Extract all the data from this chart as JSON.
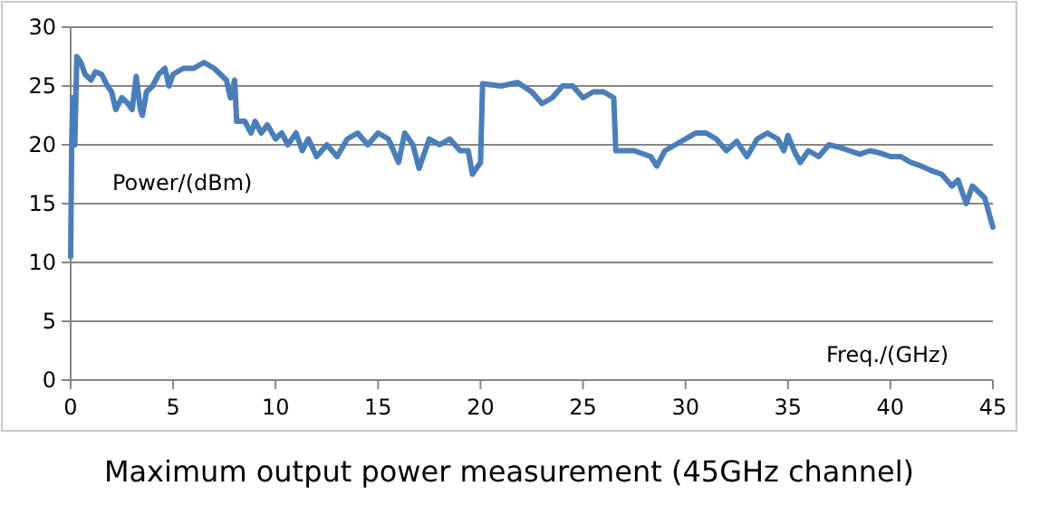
{
  "chart_data": {
    "type": "line",
    "title": "Maximum output power measurement (45GHz channel)",
    "xlabel": "Freq./(GHz)",
    "ylabel": "Power/(dBm)",
    "xlim": [
      0,
      45
    ],
    "xticks": [
      0,
      5,
      10,
      15,
      20,
      25,
      30,
      35,
      40,
      45
    ],
    "ylim": [
      0,
      30
    ],
    "yticks": [
      0,
      5,
      10,
      15,
      20,
      25,
      30
    ],
    "grid": "y",
    "line_style": "solid",
    "marker": "none",
    "series": [
      {
        "color": "#4a7ebb",
        "x": [
          0,
          0.05,
          0.1,
          0.2,
          0.3,
          0.5,
          0.7,
          1,
          1.2,
          1.5,
          1.8,
          2,
          2.2,
          2.5,
          2.8,
          3,
          3.2,
          3.4,
          3.5,
          3.7,
          4,
          4.3,
          4.6,
          4.8,
          5,
          5.5,
          6,
          6.5,
          7,
          7.3,
          7.6,
          7.8,
          8,
          8.1,
          8.5,
          8.8,
          9,
          9.3,
          9.6,
          10,
          10.3,
          10.6,
          11,
          11.3,
          11.6,
          12,
          12.5,
          13,
          13.5,
          14,
          14.5,
          15,
          15.5,
          16,
          16.3,
          16.7,
          17,
          17.5,
          18,
          18.5,
          19,
          19.4,
          19.6,
          20,
          20.1,
          21,
          21.8,
          22.5,
          23,
          23.5,
          24,
          24.5,
          25,
          25.5,
          26,
          26.5,
          26.6,
          27.5,
          28.3,
          28.6,
          29,
          29.5,
          30,
          30.5,
          31,
          31.5,
          32,
          32.5,
          33,
          33.5,
          34,
          34.5,
          34.8,
          35,
          35.3,
          35.6,
          36,
          36.5,
          37,
          37.5,
          38,
          38.5,
          39,
          39.5,
          40,
          40.5,
          41,
          41.5,
          42,
          42.5,
          43,
          43.3,
          43.7,
          44,
          44.3,
          44.6,
          45
        ],
        "values": [
          10.5,
          20,
          24,
          20,
          27.5,
          27,
          26,
          25.5,
          26.2,
          26,
          25,
          24.5,
          23,
          24,
          23.5,
          23,
          25.8,
          23,
          22.5,
          24.5,
          25,
          26,
          26.5,
          25,
          26,
          26.5,
          26.5,
          27,
          26.5,
          26,
          25.5,
          24,
          25.5,
          22,
          22,
          21,
          22,
          21,
          21.7,
          20.5,
          21,
          20,
          21,
          19.5,
          20.5,
          19,
          20,
          19,
          20.5,
          21,
          20,
          21,
          20.5,
          18.5,
          21,
          20,
          18,
          20.5,
          20,
          20.5,
          19.5,
          19.5,
          17.5,
          18.5,
          25.2,
          25,
          25.3,
          24.5,
          23.5,
          24,
          25,
          25,
          24,
          24.5,
          24.5,
          24,
          19.5,
          19.5,
          19,
          18.2,
          19.5,
          20,
          20.5,
          21,
          21,
          20.5,
          19.5,
          20.3,
          19,
          20.5,
          21,
          20.5,
          19.5,
          20.8,
          19.5,
          18.5,
          19.5,
          19,
          20,
          19.8,
          19.5,
          19.2,
          19.5,
          19.3,
          19,
          19,
          18.5,
          18.2,
          17.8,
          17.5,
          16.5,
          17,
          15,
          16.5,
          16,
          15.5,
          13
        ]
      }
    ]
  }
}
